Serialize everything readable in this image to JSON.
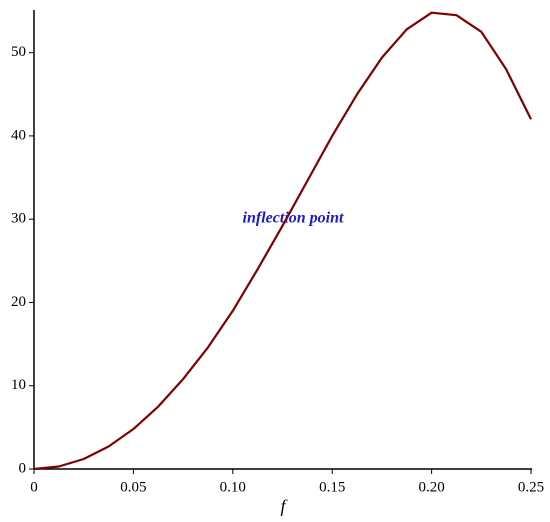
{
  "chart_data": {
    "type": "line",
    "annotation": "inflection point",
    "x_label": "f",
    "x": [
      0,
      0.0125,
      0.025,
      0.0375,
      0.05,
      0.0625,
      0.075,
      0.0875,
      0.1,
      0.1125,
      0.125,
      0.1375,
      0.15,
      0.1625,
      0.175,
      0.1875,
      0.2,
      0.2125,
      0.225,
      0.2375,
      0.25
    ],
    "series": [
      {
        "color": "#7f0000",
        "values": [
          0,
          0.3,
          1.2,
          2.7,
          4.8,
          7.5,
          10.8,
          14.6,
          19.0,
          24.0,
          29.2,
          34.6,
          40.0,
          45.0,
          49.4,
          52.8,
          54.8,
          54.5,
          52.5,
          48.0,
          42.0
        ]
      }
    ],
    "xlim": [
      0,
      0.25
    ],
    "ylim": [
      0,
      55
    ],
    "xticks": [
      0,
      0.05,
      {
        "value": 0.1,
        "label": "0.10"
      },
      0.15,
      {
        "value": 0.2,
        "label": "0.20"
      },
      0.25
    ],
    "yticks": [
      0,
      10,
      20,
      30,
      40,
      50
    ]
  }
}
